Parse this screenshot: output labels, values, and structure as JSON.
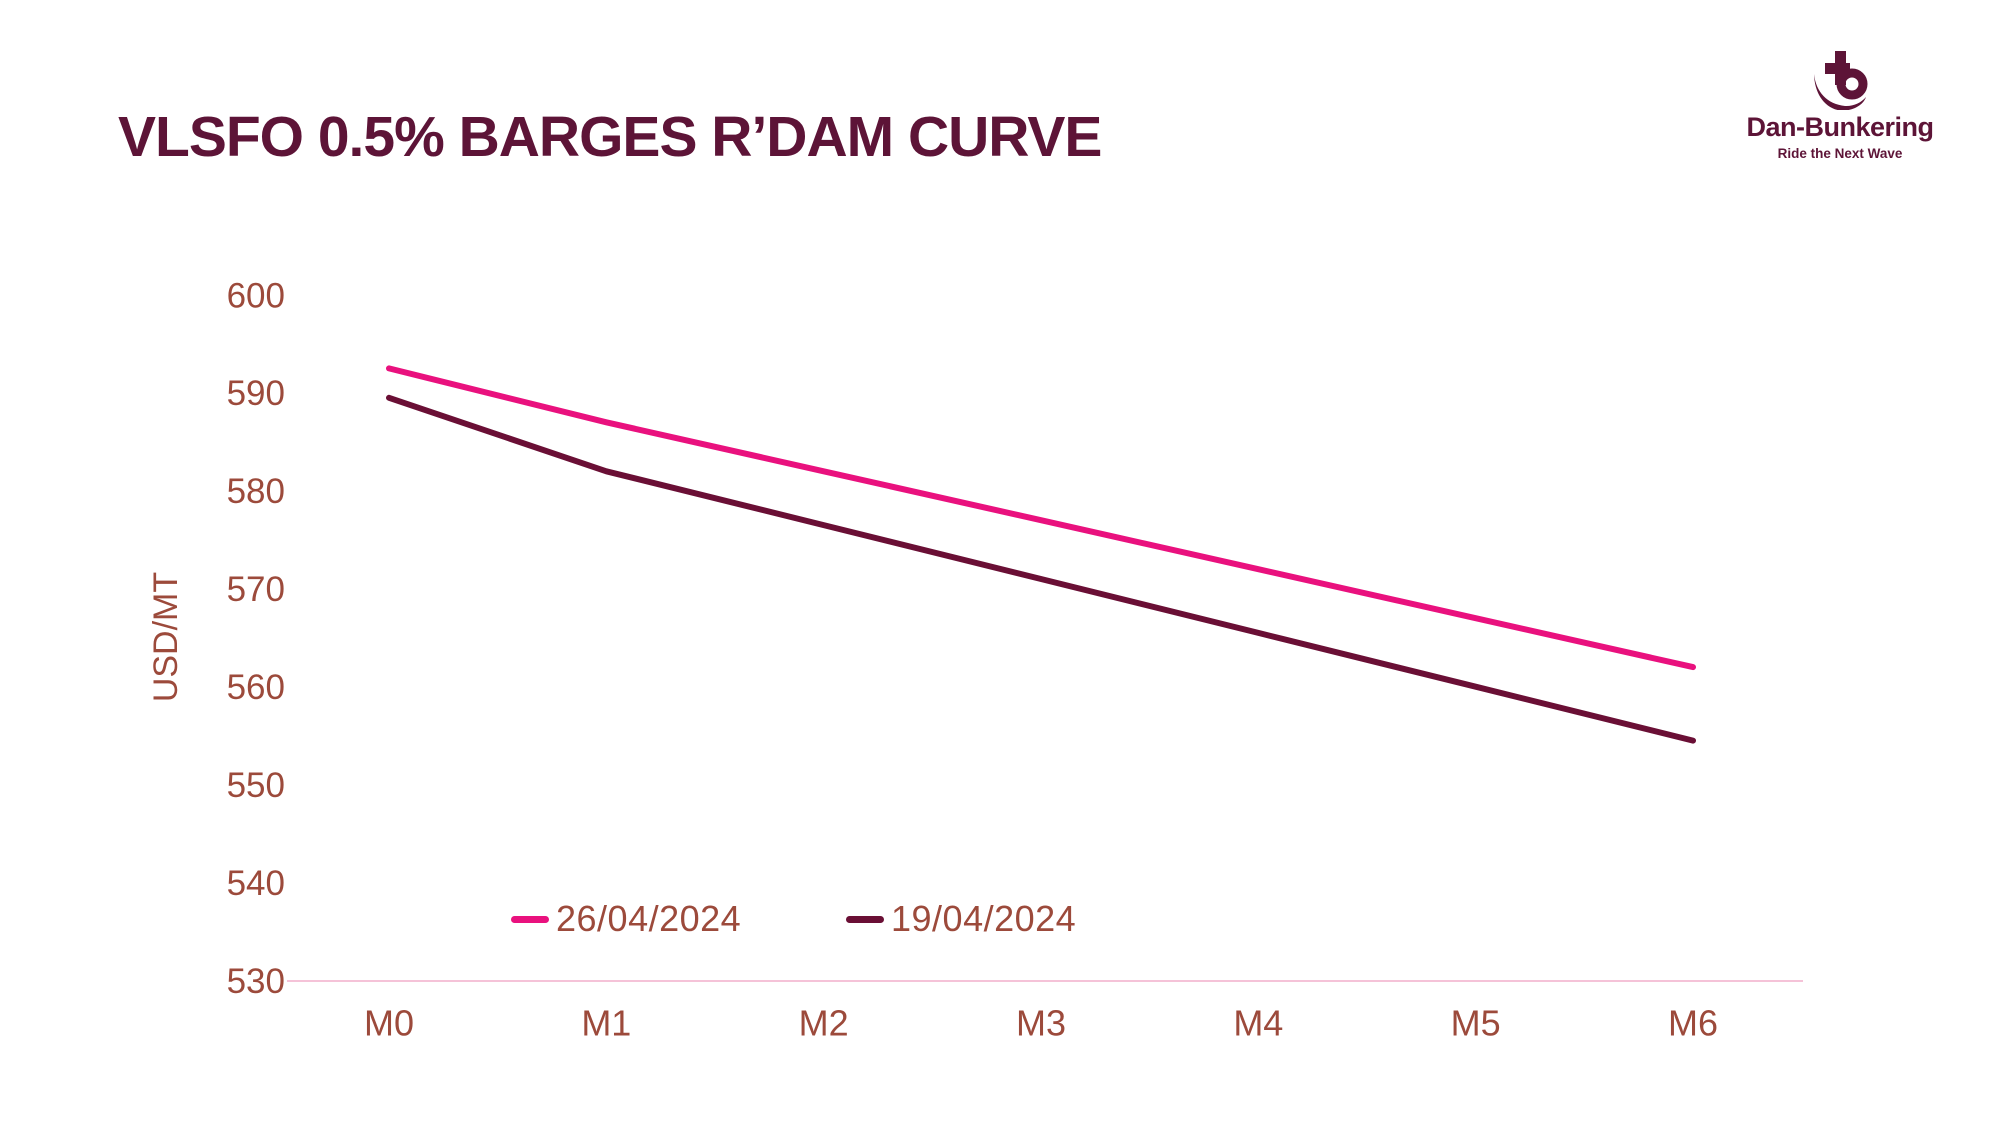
{
  "page": {
    "title": "VLSFO 0.5% BARGES R’DAM CURVE"
  },
  "logo": {
    "name": "Dan-Bunkering",
    "tagline": "Ride the Next Wave",
    "icon": "anchor-b-icon",
    "color": "#5D1437"
  },
  "colors": {
    "title_text": "#5D1437",
    "axis_text": "#9C4A3B",
    "baseline": "#F5C3D8",
    "series_current": "#E9117E",
    "series_previous": "#6A0F35"
  },
  "chart_data": {
    "type": "line",
    "title": "VLSFO 0.5% BARGES R’DAM CURVE",
    "categories": [
      "M0",
      "M1",
      "M2",
      "M3",
      "M4",
      "M5",
      "M6"
    ],
    "series": [
      {
        "name": "26/04/2024",
        "color": "#E9117E",
        "values": [
          592.5,
          587,
          582,
          577,
          572,
          567,
          562
        ]
      },
      {
        "name": "19/04/2024",
        "color": "#6A0F35",
        "values": [
          589.5,
          582,
          576.5,
          571,
          565.5,
          560,
          554.5
        ]
      }
    ],
    "xlabel": "",
    "ylabel": "USD/MT",
    "ylim": [
      530,
      600
    ],
    "yticks": [
      530,
      540,
      550,
      560,
      570,
      580,
      590,
      600
    ],
    "grid": false,
    "axis_line": "bottom-only",
    "legend_position": "bottom-inside"
  }
}
